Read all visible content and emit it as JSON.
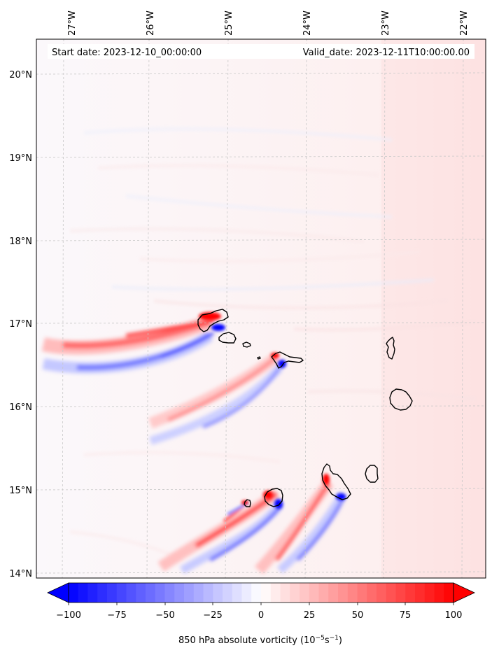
{
  "map": {
    "start_date": "Start date: 2023-12-10_00:00:00",
    "valid_date": "Valid_date: 2023-12-11T10:00:00.00",
    "lon_labels": [
      "27°W",
      "26°W",
      "25°W",
      "24°W",
      "23°W",
      "22°W"
    ],
    "lat_labels": [
      "20°N",
      "19°N",
      "18°N",
      "17°N",
      "16°N",
      "15°N",
      "14°N"
    ],
    "islands": [
      "Santo Antão",
      "São Vicente",
      "Santa Luzia",
      "São Nicolau",
      "Sal",
      "Boa Vista",
      "Brava",
      "Fogo",
      "Santiago",
      "Maio"
    ]
  },
  "colorbar": {
    "ticks": [
      "−100",
      "−75",
      "−50",
      "−25",
      "0",
      "25",
      "50",
      "75",
      "100"
    ],
    "label": "850 hPa absolute vorticity (10",
    "label_exp1": "−5",
    "label_mid": "s",
    "label_exp2": "−1",
    "label_end": ")",
    "neg_color": "#0000ff",
    "pos_color": "#ff0000"
  }
}
